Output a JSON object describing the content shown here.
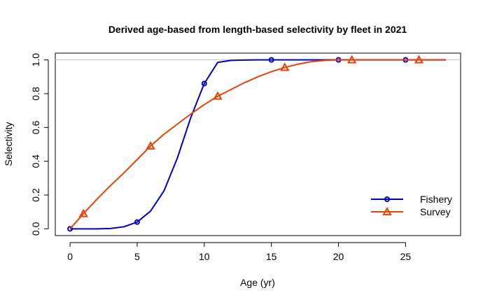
{
  "chart_data": {
    "type": "line",
    "title": "Derived age-based from length-based selectivity by fleet in 2021",
    "xlabel": "Age (yr)",
    "ylabel": "Selectivity",
    "xlim": [
      -1.1,
      29.1
    ],
    "ylim": [
      -0.04,
      1.04
    ],
    "x_ticks": [
      0,
      5,
      10,
      15,
      20,
      25
    ],
    "x_tick_labels": [
      "0",
      "5",
      "10",
      "15",
      "20",
      "25"
    ],
    "y_ticks": [
      0.0,
      0.2,
      0.4,
      0.6,
      0.8,
      1.0
    ],
    "y_tick_labels": [
      "0.0",
      "0.2",
      "0.4",
      "0.6",
      "0.8",
      "1.0"
    ],
    "reference_line_y": 1.0,
    "grid": false,
    "legend_position": "bottom-right",
    "series": [
      {
        "name": "Fishery",
        "color": "#0000CD",
        "marker": "circle",
        "x": [
          0,
          1,
          2,
          3,
          4,
          5,
          6,
          7,
          8,
          9,
          10,
          11,
          12,
          13,
          14,
          15,
          16,
          17,
          18,
          19,
          20,
          21,
          22,
          23,
          24,
          25,
          26,
          27,
          28
        ],
        "y": [
          0,
          0,
          0,
          0.002,
          0.012,
          0.04,
          0.105,
          0.225,
          0.42,
          0.66,
          0.86,
          0.985,
          0.997,
          0.999,
          1,
          1,
          1,
          1,
          1,
          1,
          1,
          1,
          1,
          1,
          1,
          1,
          1,
          1,
          1
        ],
        "marker_x": [
          0,
          5,
          10,
          15,
          20,
          25
        ]
      },
      {
        "name": "Survey",
        "color": "#EE4000",
        "marker": "triangle",
        "x": [
          0,
          1,
          2,
          3,
          4,
          5,
          6,
          7,
          8,
          9,
          10,
          11,
          12,
          13,
          14,
          15,
          16,
          17,
          18,
          19,
          20,
          21,
          22,
          23,
          24,
          25,
          26,
          27,
          28
        ],
        "y": [
          0,
          0.09,
          0.175,
          0.255,
          0.33,
          0.41,
          0.49,
          0.56,
          0.62,
          0.68,
          0.735,
          0.785,
          0.825,
          0.865,
          0.9,
          0.93,
          0.955,
          0.975,
          0.99,
          0.997,
          1,
          1,
          1,
          1,
          1,
          1,
          1,
          1,
          1
        ],
        "marker_x": [
          1,
          6,
          11,
          16,
          21,
          26
        ]
      }
    ]
  }
}
